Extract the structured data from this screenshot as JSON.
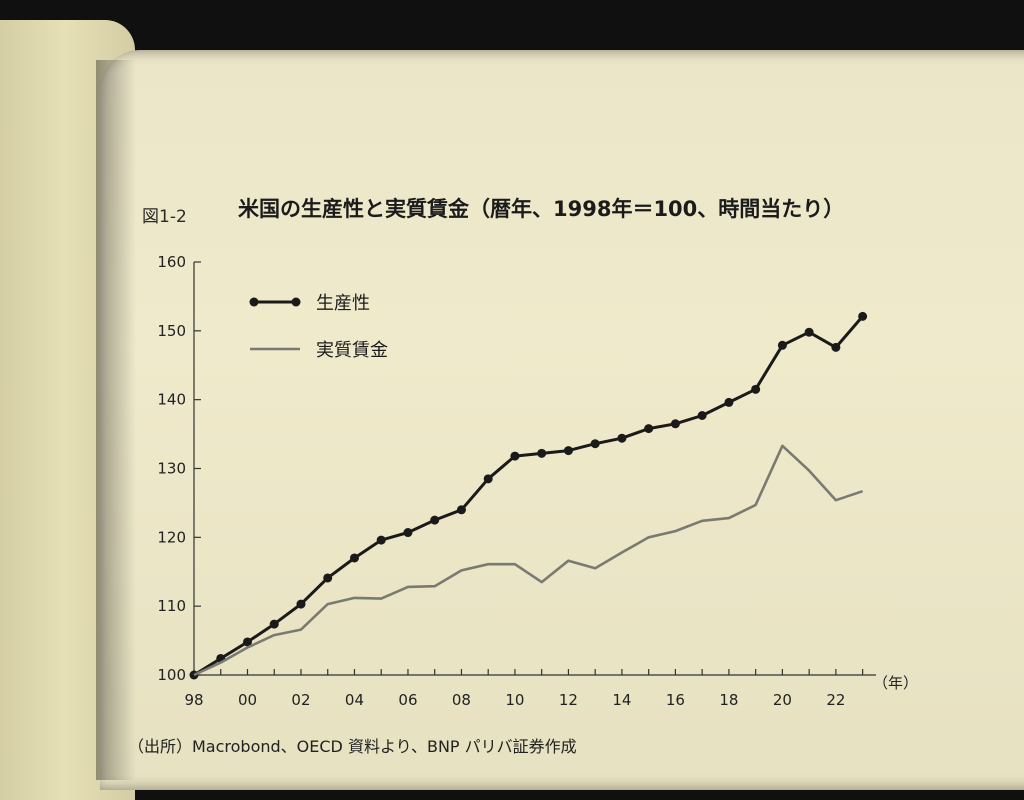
{
  "figure": {
    "number": "図1-2",
    "title": "米国の生産性と実質賃金（暦年、1998年＝100、時間当たり）",
    "source": "（出所）Macrobond、OECD 資料より、BNP パリバ証券作成",
    "x_unit": "（年）"
  },
  "chart_data": {
    "type": "line",
    "title": "米国の生産性と実質賃金（暦年、1998年＝100、時間当たり）",
    "xlabel": "（年）",
    "ylabel": "",
    "ylim": [
      100,
      160
    ],
    "y_ticks": [
      100,
      110,
      120,
      130,
      140,
      150,
      160
    ],
    "x_ticks": [
      "98",
      "00",
      "02",
      "04",
      "06",
      "08",
      "10",
      "12",
      "14",
      "16",
      "18",
      "20",
      "22"
    ],
    "x": [
      1998,
      1999,
      2000,
      2001,
      2002,
      2003,
      2004,
      2005,
      2006,
      2007,
      2008,
      2009,
      2010,
      2011,
      2012,
      2013,
      2014,
      2015,
      2016,
      2017,
      2018,
      2019,
      2020,
      2021,
      2022,
      2023
    ],
    "legend_position": "top-left",
    "grid": false,
    "series": [
      {
        "name": "生産性",
        "color": "#1a1a1a",
        "markers": true,
        "values": [
          100,
          102.4,
          104.8,
          107.4,
          110.3,
          114.1,
          117.0,
          119.6,
          120.7,
          122.5,
          124.0,
          128.5,
          131.8,
          132.2,
          132.6,
          133.6,
          134.4,
          135.8,
          136.5,
          137.7,
          139.6,
          141.5,
          147.9,
          149.8,
          147.6,
          152.1
        ]
      },
      {
        "name": "実質賃金",
        "color": "#7a7a72",
        "markers": false,
        "values": [
          100,
          101.8,
          104.0,
          105.8,
          106.6,
          110.3,
          111.2,
          111.1,
          112.8,
          112.9,
          115.2,
          116.1,
          116.1,
          113.5,
          116.6,
          115.5,
          117.8,
          120.0,
          120.9,
          122.4,
          122.8,
          124.7,
          133.3,
          129.7,
          125.4,
          126.7
        ]
      }
    ]
  }
}
